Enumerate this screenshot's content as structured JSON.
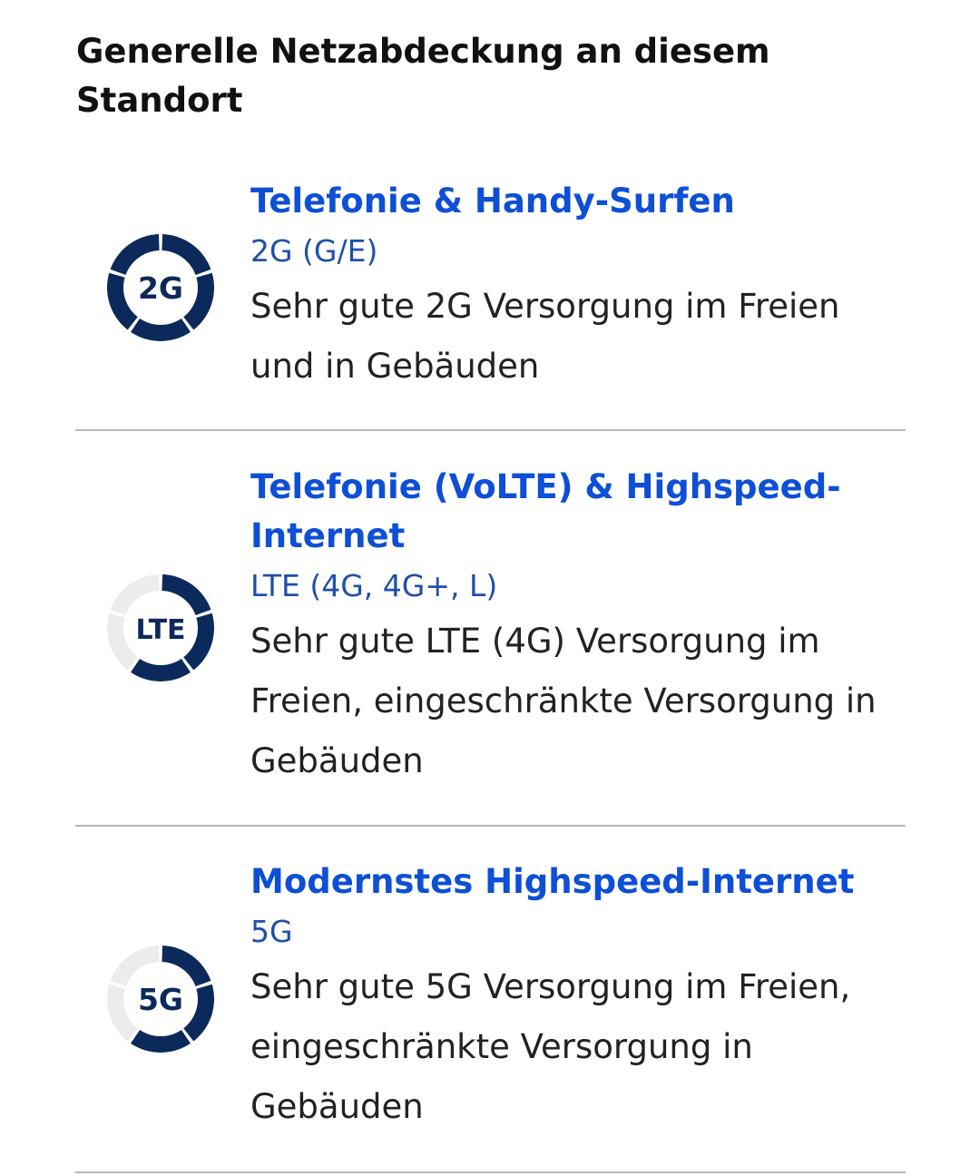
{
  "heading": "Generelle Netzabdeckung an diesem Standort",
  "colors": {
    "filled": "#0b2a5b",
    "empty": "#ececec",
    "title": "#0d4fd6",
    "subtitle": "#1f4fa8"
  },
  "sections": [
    {
      "icon_label": "2G",
      "segments_total": 5,
      "segments_filled": 5,
      "title": "Telefonie & Handy-Surfen",
      "subtitle": "2G (G/E)",
      "description": "Sehr gute 2G Versorgung im Freien und in Gebäuden"
    },
    {
      "icon_label": "LTE",
      "segments_total": 5,
      "segments_filled": 3,
      "title": "Telefonie (VoLTE) & Highspeed-Internet",
      "subtitle": "LTE (4G, 4G+, L)",
      "description": "Sehr gute LTE (4G) Versorgung im Freien, eingeschränkte Versorgung in Gebäuden"
    },
    {
      "icon_label": "5G",
      "segments_total": 5,
      "segments_filled": 3,
      "title": "Modernstes Highspeed-Internet",
      "subtitle": "5G",
      "description": "Sehr gute 5G Versorgung im Freien, eingeschränkte Versorgung in Gebäuden"
    }
  ]
}
